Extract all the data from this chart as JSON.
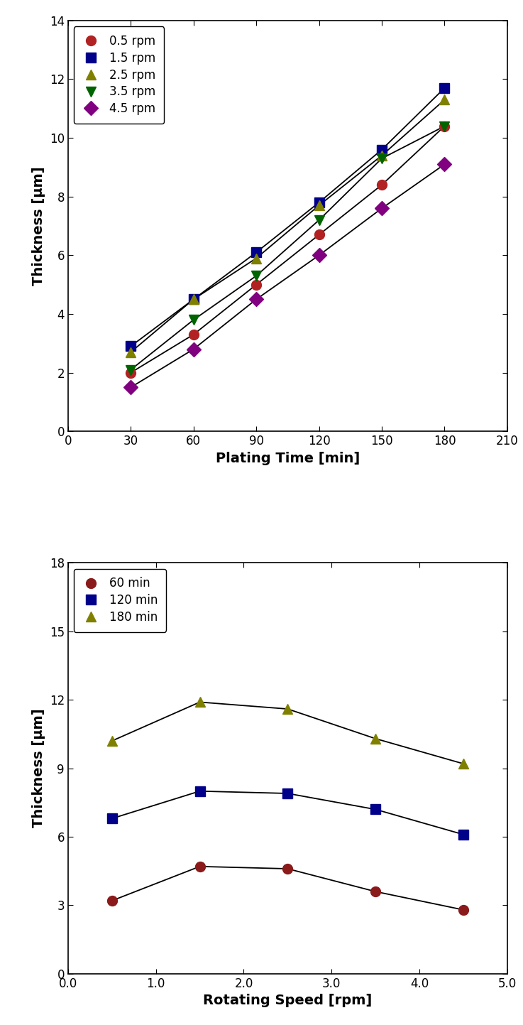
{
  "plot1": {
    "xlabel": "Plating Time [min]",
    "ylabel": "Thickness [μm]",
    "xlim": [
      0,
      210
    ],
    "ylim": [
      0,
      14
    ],
    "xticks": [
      0,
      30,
      60,
      90,
      120,
      150,
      180,
      210
    ],
    "yticks": [
      0,
      2,
      4,
      6,
      8,
      10,
      12,
      14
    ],
    "series": [
      {
        "label": "0.5 rpm",
        "color": "#b22222",
        "marker": "o",
        "x": [
          30,
          60,
          90,
          120,
          150,
          180
        ],
        "y": [
          2.0,
          3.3,
          5.0,
          6.7,
          8.4,
          10.4
        ]
      },
      {
        "label": "1.5 rpm",
        "color": "#00008b",
        "marker": "s",
        "x": [
          30,
          60,
          90,
          120,
          150,
          180
        ],
        "y": [
          2.9,
          4.5,
          6.1,
          7.8,
          9.6,
          11.7
        ]
      },
      {
        "label": "2.5 rpm",
        "color": "#808000",
        "marker": "^",
        "x": [
          30,
          60,
          90,
          120,
          150,
          180
        ],
        "y": [
          2.7,
          4.5,
          5.9,
          7.7,
          9.4,
          11.3
        ]
      },
      {
        "label": "3.5 rpm",
        "color": "#006400",
        "marker": "v",
        "x": [
          30,
          60,
          90,
          120,
          150,
          180
        ],
        "y": [
          2.1,
          3.8,
          5.3,
          7.2,
          9.3,
          10.4
        ]
      },
      {
        "label": "4.5 rpm",
        "color": "#800080",
        "marker": "D",
        "x": [
          30,
          60,
          90,
          120,
          150,
          180
        ],
        "y": [
          1.5,
          2.8,
          4.5,
          6.0,
          7.6,
          9.1
        ]
      }
    ]
  },
  "plot2": {
    "xlabel": "Rotating Speed [rpm]",
    "ylabel": "Thickness [μm]",
    "xlim": [
      0.0,
      5.0
    ],
    "ylim": [
      0,
      18
    ],
    "xticks": [
      0.0,
      1.0,
      2.0,
      3.0,
      4.0,
      5.0
    ],
    "xticklabels": [
      "0.0",
      "1.0",
      "2.0",
      "3.0",
      "4.0",
      "5.0"
    ],
    "yticks": [
      0,
      3,
      6,
      9,
      12,
      15,
      18
    ],
    "series": [
      {
        "label": "60 min",
        "color": "#8b1a1a",
        "marker": "o",
        "x": [
          0.5,
          1.5,
          2.5,
          3.5,
          4.5
        ],
        "y": [
          3.2,
          4.7,
          4.6,
          3.6,
          2.8
        ]
      },
      {
        "label": "120 min",
        "color": "#00008b",
        "marker": "s",
        "x": [
          0.5,
          1.5,
          2.5,
          3.5,
          4.5
        ],
        "y": [
          6.8,
          8.0,
          7.9,
          7.2,
          6.1
        ]
      },
      {
        "label": "180 min",
        "color": "#808000",
        "marker": "^",
        "x": [
          0.5,
          1.5,
          2.5,
          3.5,
          4.5
        ],
        "y": [
          10.2,
          11.9,
          11.6,
          10.3,
          9.2
        ]
      }
    ]
  },
  "figure_bg": "#ffffff",
  "marker_size": 10,
  "line_width": 1.3,
  "font_size_label": 14,
  "font_size_tick": 12,
  "font_size_legend": 12
}
